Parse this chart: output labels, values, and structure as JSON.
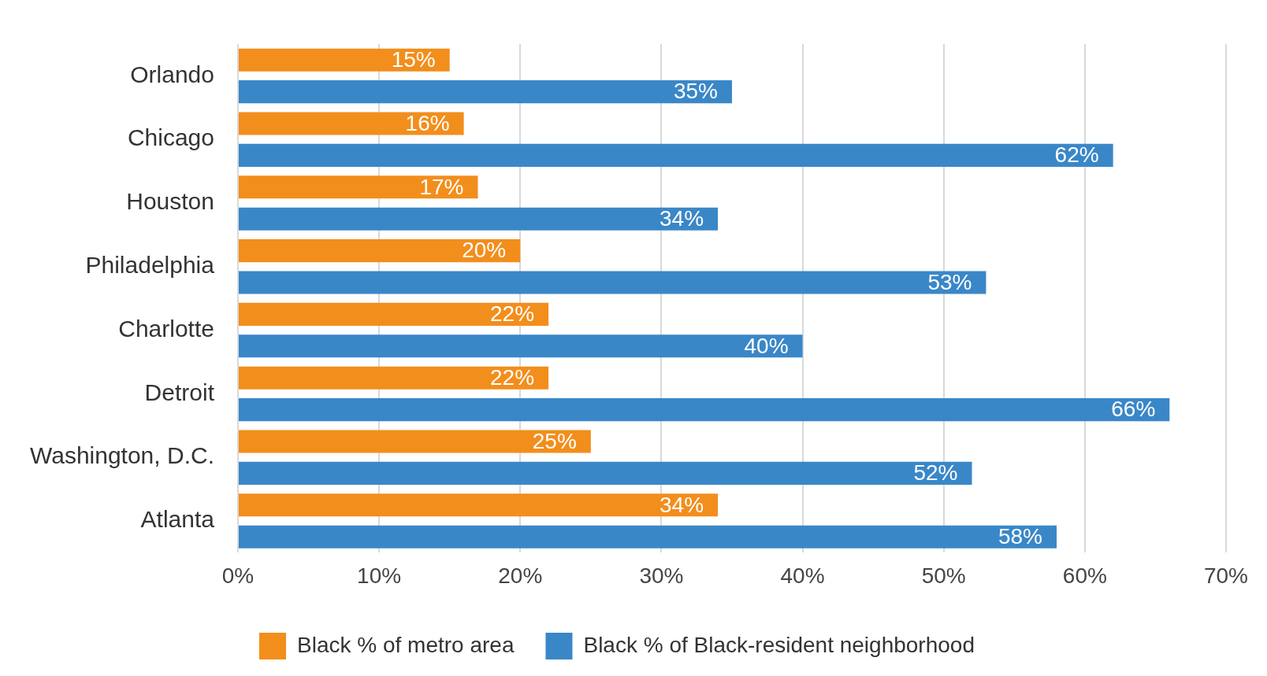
{
  "chart_data": {
    "type": "bar",
    "orientation": "horizontal",
    "categories": [
      "Orlando",
      "Chicago",
      "Houston",
      "Philadelphia",
      "Charlotte",
      "Detroit",
      "Washington, D.C.",
      "Atlanta"
    ],
    "series": [
      {
        "name": "Black % of metro area",
        "color": "#f28e1c",
        "values": [
          15,
          16,
          17,
          20,
          22,
          22,
          25,
          34
        ],
        "value_labels": [
          "15%",
          "16%",
          "17%",
          "20%",
          "22%",
          "22%",
          "25%",
          "34%"
        ]
      },
      {
        "name": "Black % of Black-resident neighborhood",
        "color": "#3a87c8",
        "values": [
          35,
          62,
          34,
          53,
          40,
          66,
          52,
          58
        ],
        "value_labels": [
          "35%",
          "62%",
          "34%",
          "53%",
          "40%",
          "66%",
          "52%",
          "58%"
        ]
      }
    ],
    "xlim": [
      0,
      70
    ],
    "xticks": [
      {
        "value": 0,
        "label": "0%"
      },
      {
        "value": 10,
        "label": "10%"
      },
      {
        "value": 20,
        "label": "20%"
      },
      {
        "value": 30,
        "label": "30%"
      },
      {
        "value": 40,
        "label": "40%"
      },
      {
        "value": 50,
        "label": "50%"
      },
      {
        "value": 60,
        "label": "60%"
      },
      {
        "value": 70,
        "label": "70%"
      }
    ],
    "grid": "x",
    "legend": "bottom"
  }
}
